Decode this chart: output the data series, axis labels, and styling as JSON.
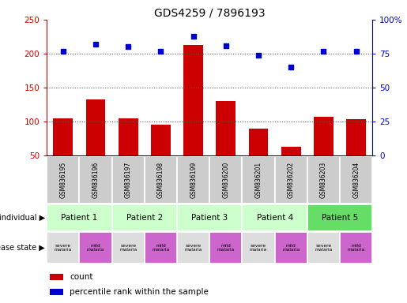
{
  "title": "GDS4259 / 7896193",
  "samples": [
    "GSM836195",
    "GSM836196",
    "GSM836197",
    "GSM836198",
    "GSM836199",
    "GSM836200",
    "GSM836201",
    "GSM836202",
    "GSM836203",
    "GSM836204"
  ],
  "counts": [
    105,
    132,
    105,
    95,
    213,
    130,
    89,
    63,
    107,
    104
  ],
  "percentiles": [
    77,
    82,
    80,
    77,
    88,
    81,
    74,
    65,
    77,
    77
  ],
  "ylim_left": [
    50,
    250
  ],
  "ylim_right": [
    0,
    100
  ],
  "yticks_left": [
    50,
    100,
    150,
    200,
    250
  ],
  "yticks_right": [
    0,
    25,
    50,
    75,
    100
  ],
  "ytick_labels_right": [
    "0",
    "25",
    "50",
    "75",
    "100%"
  ],
  "patients": [
    {
      "label": "Patient 1",
      "cols": [
        0,
        1
      ],
      "color": "#ccffcc"
    },
    {
      "label": "Patient 2",
      "cols": [
        2,
        3
      ],
      "color": "#ccffcc"
    },
    {
      "label": "Patient 3",
      "cols": [
        4,
        5
      ],
      "color": "#ccffcc"
    },
    {
      "label": "Patient 4",
      "cols": [
        6,
        7
      ],
      "color": "#ccffcc"
    },
    {
      "label": "Patient 5",
      "cols": [
        8,
        9
      ],
      "color": "#66dd66"
    }
  ],
  "disease_states": [
    {
      "label": "severe\nmalaria",
      "col": 0,
      "color": "#dddddd"
    },
    {
      "label": "mild\nmalaria",
      "col": 1,
      "color": "#cc66cc"
    },
    {
      "label": "severe\nmalaria",
      "col": 2,
      "color": "#dddddd"
    },
    {
      "label": "mild\nmalaria",
      "col": 3,
      "color": "#cc66cc"
    },
    {
      "label": "severe\nmalaria",
      "col": 4,
      "color": "#dddddd"
    },
    {
      "label": "mild\nmalaria",
      "col": 5,
      "color": "#cc66cc"
    },
    {
      "label": "severe\nmalaria",
      "col": 6,
      "color": "#dddddd"
    },
    {
      "label": "mild\nmalaria",
      "col": 7,
      "color": "#cc66cc"
    },
    {
      "label": "severe\nmalaria",
      "col": 8,
      "color": "#dddddd"
    },
    {
      "label": "mild\nmalaria",
      "col": 9,
      "color": "#cc66cc"
    }
  ],
  "bar_color": "#cc0000",
  "dot_color": "#0000cc",
  "left_axis_color": "#cc0000",
  "right_axis_color": "#0000cc",
  "dotted_line_color": "#555555",
  "sample_bg_color": "#cccccc",
  "label_individual": "individual",
  "label_disease": "disease state",
  "legend_count": "count",
  "legend_percentile": "percentile rank within the sample"
}
